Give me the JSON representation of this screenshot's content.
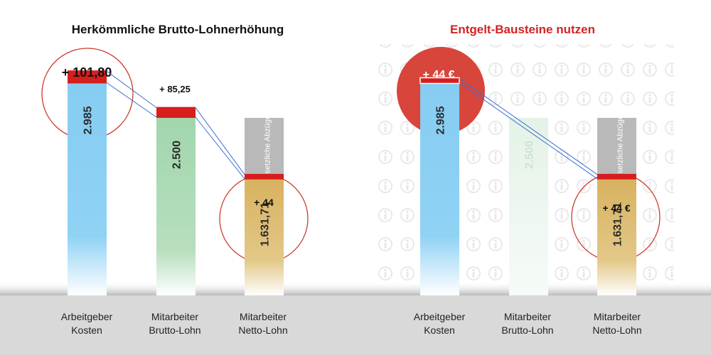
{
  "colors": {
    "blue": "#86cdf2",
    "green": "#a8d8b4",
    "gray": "#b9b9b9",
    "gold": "#dcb86a",
    "red": "#d71e1e",
    "circle_fill": "#d7453b",
    "circle_stroke": "#cc3a2e",
    "footer": "#d9d9d9",
    "title_red": "#d42222"
  },
  "icons": [
    "info-watermark-icon"
  ],
  "chart_data": [
    {
      "type": "bar",
      "title": "Herkömmliche Brutto-Lohnerhöhung",
      "categories": [
        {
          "line1": "Arbeitgeber",
          "line2": "Kosten"
        },
        {
          "line1": "Mitarbeiter",
          "line2": "Brutto-Lohn"
        },
        {
          "line1": "Mitarbeiter",
          "line2": "Netto-Lohn"
        }
      ],
      "series": [
        {
          "values": [
            2985,
            2500,
            1631.71
          ],
          "labels": [
            "2.985",
            "2.500",
            "1.631,71"
          ]
        },
        {
          "values": [
            101.8,
            85.25,
            44
          ],
          "labels": [
            "+ 101,80",
            "+ 85,25",
            "+ 44"
          ]
        }
      ],
      "deductions": {
        "label": "gesetzliche Abzüge"
      },
      "highlight_circles": [
        0,
        2
      ]
    },
    {
      "type": "bar",
      "title": "Entgelt-Bausteine nutzen",
      "categories": [
        {
          "line1": "Arbeitgeber",
          "line2": "Kosten"
        },
        {
          "line1": "Mitarbeiter",
          "line2": "Brutto-Lohn"
        },
        {
          "line1": "Mitarbeiter",
          "line2": "Netto-Lohn"
        }
      ],
      "series": [
        {
          "values": [
            2985,
            2500,
            1631.71
          ],
          "labels": [
            "2.985",
            "2.500",
            "1.631,71"
          ]
        },
        {
          "values": [
            44,
            0,
            44
          ],
          "labels": [
            "+ 44 €",
            "",
            "+ 44 €"
          ]
        }
      ],
      "deductions": {
        "label": "gesetzliche Abzüge"
      },
      "faded_bar": 1,
      "highlight_circles": [
        0,
        2
      ]
    }
  ]
}
